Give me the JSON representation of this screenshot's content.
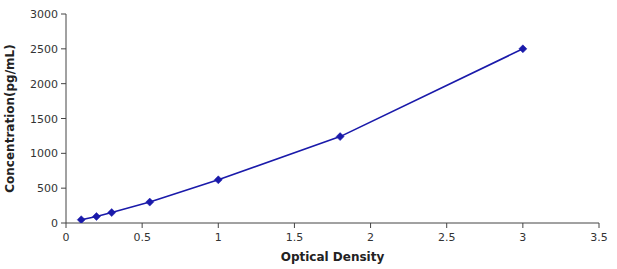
{
  "chart_data": {
    "type": "line",
    "x": [
      0.1,
      0.2,
      0.3,
      0.55,
      1.0,
      1.8,
      3.0
    ],
    "values": [
      47,
      93,
      150,
      300,
      620,
      1240,
      2500
    ],
    "color": "#1a1aaa",
    "marker": "diamond",
    "xlabel": "Optical Density",
    "ylabel": "Concentration(pg/mL)",
    "xlim": [
      0,
      3.5
    ],
    "ylim": [
      0,
      3000
    ],
    "xticks": [
      0,
      0.5,
      1,
      1.5,
      2,
      2.5,
      3,
      3.5
    ],
    "yticks": [
      0,
      500,
      1000,
      1500,
      2000,
      2500,
      3000
    ],
    "grid": false
  }
}
